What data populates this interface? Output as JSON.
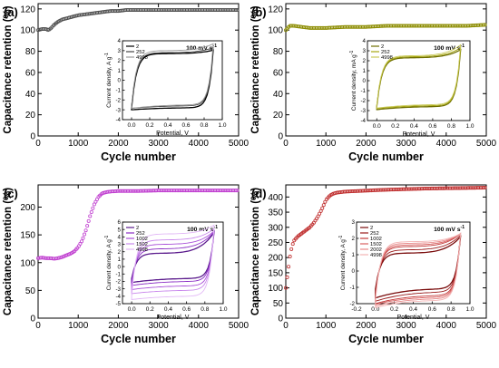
{
  "chart_data": [
    {
      "type": "scatter",
      "panel_label": "(a)",
      "xlabel": "Cycle number",
      "ylabel": "Capacitance retention (%)",
      "xlim": [
        0,
        5000
      ],
      "ylim": [
        0,
        125
      ],
      "xticks": [
        0,
        1000,
        2000,
        3000,
        4000,
        5000
      ],
      "yticks": [
        0,
        20,
        40,
        60,
        80,
        100,
        120
      ],
      "color": "#505050",
      "series": [
        {
          "x": [
            0,
            100,
            200,
            250,
            300,
            400,
            500,
            600,
            700,
            800,
            900,
            1000,
            1200,
            1400,
            1600,
            1800,
            2000,
            2200,
            2500,
            3000,
            3500,
            4000,
            4500,
            5000
          ],
          "y": [
            100,
            101,
            101,
            100,
            101,
            105,
            108,
            110,
            111,
            112,
            113,
            114,
            115,
            116,
            117,
            118,
            118,
            119,
            119,
            119,
            119,
            119,
            119,
            119
          ]
        }
      ],
      "inset": {
        "type": "line",
        "title": "100 mV s",
        "title_sup": "-1",
        "xlabel": "Potential, V",
        "ylabel": "Current density, A g",
        "ylabel_sup": "-1",
        "xlim": [
          -0.1,
          1.0
        ],
        "ylim": [
          -4,
          4
        ],
        "xticks": [
          "0.0",
          "0.2",
          "0.4",
          "0.6",
          "0.8",
          "1.0"
        ],
        "yticks": [
          -4,
          -3,
          -2,
          -1,
          0,
          1,
          2,
          3,
          4
        ],
        "legend": [
          "2",
          "252",
          "4998"
        ],
        "colors": [
          "#000000",
          "#444444",
          "#9a9a9a"
        ],
        "cv": [
          {
            "lo": -2.8,
            "hi": 2.7,
            "up": 0.35,
            "down": -0.1,
            "k": 0.2
          },
          {
            "lo": -2.6,
            "hi": 2.8,
            "up": 0.5,
            "down": -0.3,
            "k": 0.25
          },
          {
            "lo": -2.5,
            "hi": 3.0,
            "up": 0.7,
            "down": -0.5,
            "k": 0.35
          }
        ]
      }
    },
    {
      "type": "scatter",
      "panel_label": "(b)",
      "xlabel": "Cycle number",
      "ylabel": "Capacitance retention (%)",
      "xlim": [
        0,
        5000
      ],
      "ylim": [
        0,
        125
      ],
      "xticks": [
        0,
        1000,
        2000,
        3000,
        4000,
        5000
      ],
      "yticks": [
        0,
        20,
        40,
        60,
        80,
        100,
        120
      ],
      "color": "#8c8c00",
      "series": [
        {
          "x": [
            0,
            100,
            200,
            400,
            600,
            800,
            1000,
            1500,
            2000,
            2500,
            3000,
            3500,
            4000,
            4500,
            5000
          ],
          "y": [
            100,
            104,
            104,
            103,
            102,
            102,
            102,
            103,
            103,
            104,
            104,
            104,
            104,
            104,
            105
          ]
        }
      ],
      "inset": {
        "type": "line",
        "title": "100 mV s",
        "title_sup": "-1",
        "xlabel": "Potential, V",
        "ylabel": "Current density, mA g",
        "ylabel_sup": "-1",
        "xlim": [
          -0.1,
          1.0
        ],
        "ylim": [
          -4,
          4
        ],
        "xticks": [
          "0.0",
          "0.2",
          "0.4",
          "0.6",
          "0.8",
          "1.0"
        ],
        "yticks": [
          -4,
          -3,
          -2,
          -1,
          0,
          1,
          2,
          3,
          4
        ],
        "legend": [
          "2",
          "252",
          "4998"
        ],
        "colors": [
          "#6e6e00",
          "#a7a70f",
          "#c9c95a"
        ],
        "cv": [
          {
            "lo": -2.6,
            "hi": 2.3,
            "up": 0.8,
            "down": -0.4,
            "k": 0.3
          },
          {
            "lo": -2.5,
            "hi": 2.4,
            "up": 0.9,
            "down": -0.5,
            "k": 0.3
          },
          {
            "lo": -2.4,
            "hi": 2.5,
            "up": 1.1,
            "down": -0.7,
            "k": 0.35
          }
        ]
      }
    },
    {
      "type": "scatter",
      "panel_label": "(c)",
      "xlabel": "Cycle number",
      "ylabel": "Capacitance retention (%)",
      "xlim": [
        0,
        5000
      ],
      "ylim": [
        0,
        240
      ],
      "xticks": [
        0,
        1000,
        2000,
        3000,
        4000,
        5000
      ],
      "yticks": [
        0,
        50,
        100,
        150,
        200
      ],
      "color": "#c040d0",
      "series": [
        {
          "x": [
            0,
            100,
            200,
            300,
            400,
            500,
            600,
            700,
            800,
            900,
            1000,
            1100,
            1200,
            1300,
            1400,
            1500,
            1600,
            1700,
            1800,
            2000,
            2500,
            3000,
            3500,
            4000,
            4500,
            5000
          ],
          "y": [
            108,
            109,
            108,
            108,
            107,
            108,
            110,
            113,
            116,
            120,
            128,
            140,
            160,
            185,
            205,
            218,
            225,
            227,
            228,
            229,
            229,
            230,
            230,
            230,
            230,
            230
          ]
        }
      ],
      "inset": {
        "type": "line",
        "title": "100 mV s",
        "title_sup": "-1",
        "xlabel": "Potential, V",
        "ylabel": "Current density, A g",
        "ylabel_sup": "-1",
        "xlim": [
          -0.1,
          1.0
        ],
        "ylim": [
          -5,
          6
        ],
        "xticks": [
          "0.0",
          "0.2",
          "0.4",
          "0.6",
          "0.8",
          "1.0"
        ],
        "yticks": [
          -5,
          -4,
          -3,
          -2,
          -1,
          0,
          1,
          2,
          3,
          4,
          5,
          6
        ],
        "legend": [
          "2",
          "252",
          "1002",
          "1502",
          "4998"
        ],
        "colors": [
          "#5a1a8c",
          "#8a2cc4",
          "#a94fd8",
          "#c988ec",
          "#e2b8f6"
        ],
        "cv": [
          {
            "lo": -1.6,
            "hi": 1.8,
            "up": 2.8,
            "down": -1.4,
            "k": 0.55
          },
          {
            "lo": -2.0,
            "hi": 2.4,
            "up": 2.3,
            "down": -1.6,
            "k": 0.55
          },
          {
            "lo": -2.6,
            "hi": 3.0,
            "up": 1.8,
            "down": -1.5,
            "k": 0.5
          },
          {
            "lo": -3.2,
            "hi": 3.6,
            "up": 1.5,
            "down": -1.3,
            "k": 0.45
          },
          {
            "lo": -4.0,
            "hi": 4.4,
            "up": 1.2,
            "down": -1.0,
            "k": 0.45
          }
        ]
      }
    },
    {
      "type": "scatter",
      "panel_label": "(d)",
      "xlabel": "Cycle number",
      "ylabel": "Capacitance retention (%)",
      "xlim": [
        0,
        5000
      ],
      "ylim": [
        0,
        440
      ],
      "xticks": [
        0,
        1000,
        2000,
        3000,
        4000,
        5000
      ],
      "yticks": [
        0,
        50,
        100,
        150,
        200,
        250,
        300,
        350,
        400
      ],
      "color": "#c03030",
      "series": [
        {
          "x": [
            0,
            50,
            100,
            150,
            200,
            300,
            400,
            500,
            600,
            700,
            800,
            900,
            1000,
            1100,
            1200,
            1300,
            1500,
            2000,
            2500,
            3000,
            3500,
            4000,
            4500,
            5000
          ],
          "y": [
            100,
            150,
            200,
            235,
            255,
            270,
            280,
            290,
            300,
            315,
            335,
            360,
            390,
            405,
            412,
            415,
            418,
            421,
            424,
            426,
            428,
            429,
            430,
            431
          ]
        }
      ],
      "inset": {
        "type": "line",
        "title": "100 mV s",
        "title_sup": "-1",
        "xlabel": "Potential, V",
        "ylabel": "Current density, A g",
        "ylabel_sup": "-1",
        "xlim": [
          -0.2,
          1.0
        ],
        "ylim": [
          -2,
          3
        ],
        "xticks": [
          "-0.2",
          "0.0",
          "0.2",
          "0.4",
          "0.6",
          "0.8",
          "1.0"
        ],
        "yticks": [
          -2,
          -1,
          0,
          1,
          2,
          3
        ],
        "legend": [
          "2",
          "252",
          "1002",
          "1502",
          "2002",
          "4998"
        ],
        "colors": [
          "#7a0c0c",
          "#9a1c1c",
          "#c23838",
          "#d86060",
          "#e88a8a",
          "#f3b4b4"
        ],
        "cv": [
          {
            "lo": -1.1,
            "hi": 1.1,
            "up": 1.0,
            "down": -0.7,
            "k": 0.55
          },
          {
            "lo": -1.3,
            "hi": 1.3,
            "up": 0.9,
            "down": -0.6,
            "k": 0.55
          },
          {
            "lo": -1.5,
            "hi": 1.5,
            "up": 0.8,
            "down": -0.5,
            "k": 0.5
          },
          {
            "lo": -1.6,
            "hi": 1.6,
            "up": 0.7,
            "down": -0.4,
            "k": 0.45
          },
          {
            "lo": -1.7,
            "hi": 1.7,
            "up": 0.6,
            "down": -0.35,
            "k": 0.45
          },
          {
            "lo": -1.8,
            "hi": 1.8,
            "up": 0.5,
            "down": -0.3,
            "k": 0.45
          }
        ]
      }
    }
  ]
}
